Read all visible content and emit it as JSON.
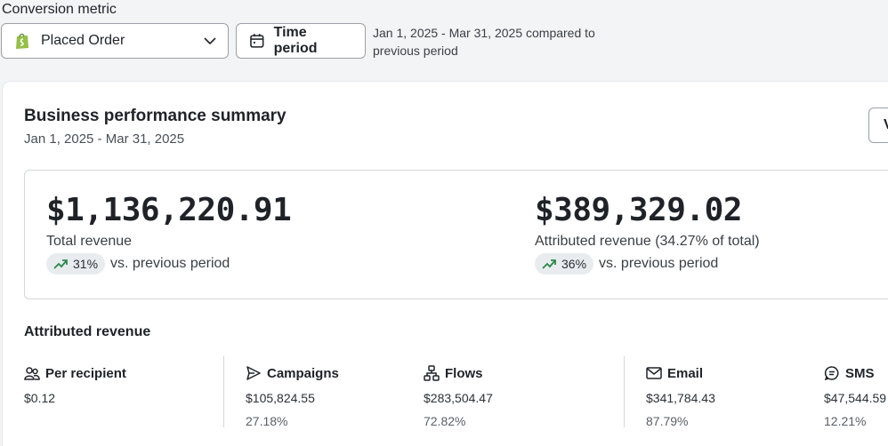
{
  "controls": {
    "conversion_label": "Conversion metric",
    "metric_value": "Placed Order",
    "time_period_label": "Time period",
    "period_note": "Jan 1, 2025 - Mar 31, 2025 compared to previous period"
  },
  "summary_card": {
    "title": "Business performance summary",
    "subtitle": "Jan 1, 2025 - Mar 31, 2025",
    "view_button_label": "V"
  },
  "stats": [
    {
      "value": "$1,136,220.91",
      "label": "Total revenue",
      "change": "31%",
      "change_text": "vs. previous period",
      "trend": "up"
    },
    {
      "value": "$389,329.02",
      "label": "Attributed revenue (34.27% of total)",
      "change": "36%",
      "change_text": "vs. previous period",
      "trend": "up"
    }
  ],
  "attributed": {
    "title": "Attributed revenue",
    "columns": [
      {
        "icon": "people-icon",
        "label": "Per recipient",
        "value": "$0.12",
        "pct": ""
      },
      {
        "icon": "send-icon",
        "label": "Campaigns",
        "value": "$105,824.55",
        "pct": "27.18%"
      },
      {
        "icon": "flow-icon",
        "label": "Flows",
        "value": "$283,504.47",
        "pct": "72.82%"
      },
      {
        "icon": "mail-icon",
        "label": "Email",
        "value": "$341,784.43",
        "pct": "87.79%"
      },
      {
        "icon": "sms-icon",
        "label": "SMS",
        "value": "$47,544.59",
        "pct": "12.21%"
      }
    ]
  },
  "colors": {
    "trend_up": "#2a8a4a",
    "brand_shopify": "#95bf47"
  }
}
